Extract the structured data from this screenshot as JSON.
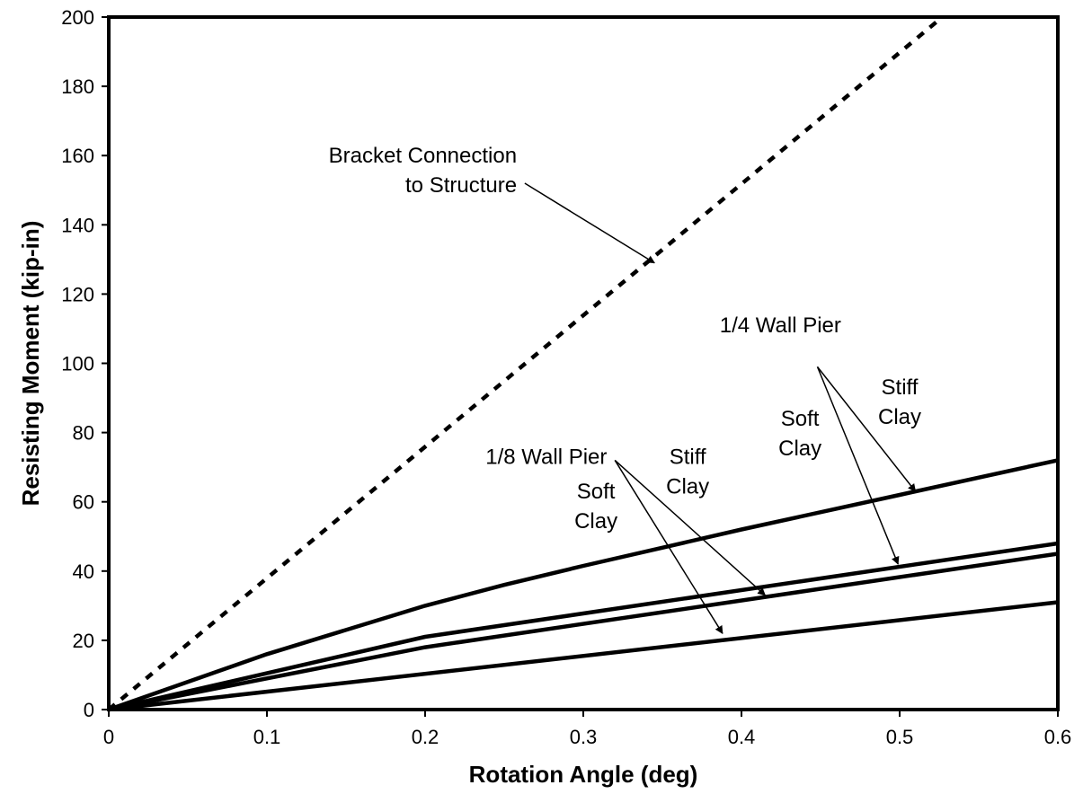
{
  "chart_data": {
    "type": "line",
    "xlabel": "Rotation Angle (deg)",
    "ylabel": "Resisting Moment (kip-in)",
    "xlim": [
      0,
      0.6
    ],
    "ylim": [
      0,
      200
    ],
    "x_ticks": [
      "0",
      "0.1",
      "0.2",
      "0.3",
      "0.4",
      "0.5",
      "0.6"
    ],
    "y_ticks": [
      "0",
      "20",
      "40",
      "60",
      "80",
      "100",
      "120",
      "140",
      "160",
      "180",
      "200"
    ],
    "grid": false,
    "legend": "none",
    "series": [
      {
        "style": "dashed",
        "x": [
          0,
          0.527
        ],
        "y": [
          0,
          200
        ]
      },
      {
        "style": "solid",
        "x": [
          0,
          0.1,
          0.2,
          0.25,
          0.3,
          0.4,
          0.5,
          0.6
        ],
        "y": [
          0,
          16,
          30,
          36,
          41.5,
          52,
          62,
          72
        ]
      },
      {
        "style": "solid",
        "x": [
          0,
          0.2,
          0.6
        ],
        "y": [
          0,
          21,
          48
        ]
      },
      {
        "style": "solid",
        "x": [
          0,
          0.2,
          0.6
        ],
        "y": [
          0,
          18,
          45
        ]
      },
      {
        "style": "solid",
        "x": [
          0,
          0.6
        ],
        "y": [
          0,
          31
        ]
      }
    ],
    "annotations": [
      {
        "lines": [
          "Bracket Connection",
          "to Structure"
        ],
        "anchor": "end",
        "x": 0.258,
        "y": 158,
        "arrows": [
          {
            "from": [
              0.263,
              152
            ],
            "to": [
              0.345,
              129
            ]
          }
        ]
      },
      {
        "lines": [
          "1/4 Wall Pier"
        ],
        "anchor": "end",
        "x": 0.463,
        "y": 109,
        "arrows": [
          {
            "from": [
              0.448,
              99
            ],
            "to": [
              0.51,
              63
            ]
          },
          {
            "from": [
              0.448,
              99
            ],
            "to": [
              0.499,
              42
            ]
          }
        ]
      },
      {
        "lines": [
          "Stiff",
          "Clay"
        ],
        "anchor": "middle",
        "x": 0.5,
        "y": 91,
        "arrows": []
      },
      {
        "lines": [
          "Soft",
          "Clay"
        ],
        "anchor": "middle",
        "x": 0.437,
        "y": 82,
        "arrows": []
      },
      {
        "lines": [
          "1/8 Wall Pier"
        ],
        "anchor": "end",
        "x": 0.315,
        "y": 71,
        "arrows": [
          {
            "from": [
              0.32,
              72
            ],
            "to": [
              0.415,
              33
            ]
          },
          {
            "from": [
              0.32,
              72
            ],
            "to": [
              0.388,
              22
            ]
          }
        ]
      },
      {
        "lines": [
          "Stiff",
          "Clay"
        ],
        "anchor": "middle",
        "x": 0.366,
        "y": 71,
        "arrows": []
      },
      {
        "lines": [
          "Soft",
          "Clay"
        ],
        "anchor": "middle",
        "x": 0.308,
        "y": 61,
        "arrows": []
      }
    ]
  }
}
